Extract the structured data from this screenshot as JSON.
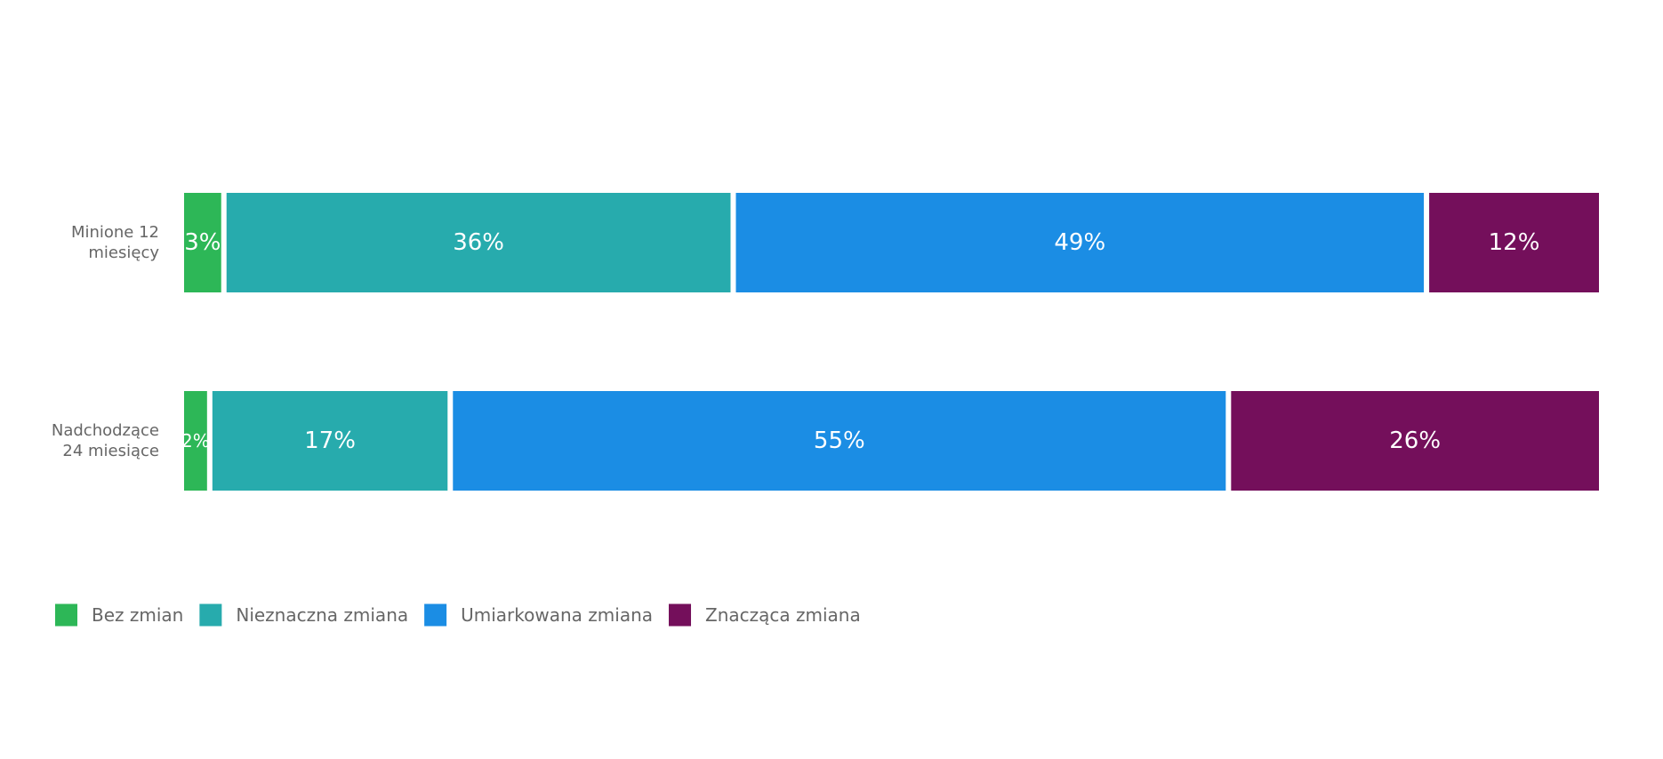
{
  "chart_data": {
    "type": "bar",
    "orientation": "horizontal",
    "stacked": "percent",
    "categories": [
      "Minione 12 miesięcy",
      "Nadchodzące 24 miesiące"
    ],
    "category_lines": [
      [
        "Minione 12",
        "miesięcy"
      ],
      [
        "Nadchodzące",
        "24 miesiące"
      ]
    ],
    "series": [
      {
        "name": "Bez zmian",
        "color": "#2db757",
        "values": [
          3,
          2
        ]
      },
      {
        "name": "Nieznaczna zmiana",
        "color": "#27abad",
        "values": [
          36,
          17
        ]
      },
      {
        "name": "Umiarkowana zmiana",
        "color": "#1b8de4",
        "values": [
          49,
          55
        ]
      },
      {
        "name": "Znacząca zmiana",
        "color": "#740f5b",
        "values": [
          12,
          26
        ]
      }
    ],
    "data_labels": [
      [
        "3%",
        "36%",
        "49%",
        "12%"
      ],
      [
        "2%",
        "17%",
        "55%",
        "26%"
      ]
    ],
    "xlim": [
      0,
      100
    ],
    "grid": false,
    "legend_position": "bottom-left",
    "title": "",
    "xlabel": "",
    "ylabel": ""
  }
}
